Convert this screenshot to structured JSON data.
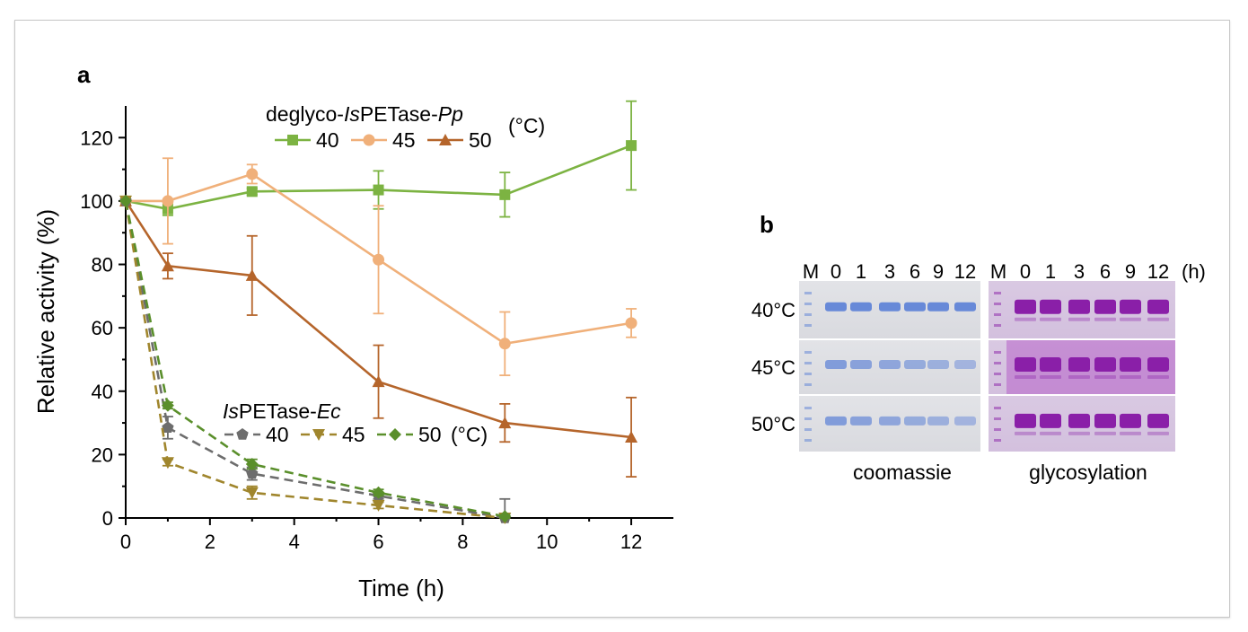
{
  "panel_a": {
    "label": "a",
    "legend_pp": {
      "prefix": "deglyco-",
      "italic1": "Is",
      "middle": "PETase-",
      "italic2": "Pp",
      "unit": "(°C)"
    },
    "legend_ec": {
      "italic1": "Is",
      "middle": "PETase-",
      "italic2": "Ec",
      "unit": "(°C)"
    }
  },
  "chart_data": {
    "type": "line",
    "xlabel": "Time (h)",
    "ylabel": "Relative activity (%)",
    "xlim": [
      0,
      13
    ],
    "ylim": [
      0,
      130
    ],
    "xticks": [
      0,
      2,
      4,
      6,
      8,
      10,
      12
    ],
    "yticks": [
      0,
      20,
      40,
      60,
      80,
      100,
      120
    ],
    "series": [
      {
        "name": "40",
        "group": "pp",
        "color": "#7cb342",
        "marker": "square",
        "dash": false,
        "x": [
          0,
          1,
          3,
          6,
          9,
          12
        ],
        "y": [
          100,
          97.5,
          103,
          103.5,
          102,
          117.5
        ],
        "err": [
          0,
          2,
          1,
          6,
          7,
          14
        ]
      },
      {
        "name": "45",
        "group": "pp",
        "color": "#f0b07a",
        "marker": "circle",
        "dash": false,
        "x": [
          0,
          1,
          3,
          6,
          9,
          12
        ],
        "y": [
          100,
          100,
          108.5,
          81.5,
          55,
          61.5
        ],
        "err": [
          0,
          13.5,
          3,
          17,
          10,
          4.5
        ]
      },
      {
        "name": "50",
        "group": "pp",
        "color": "#b5652b",
        "marker": "triangle",
        "dash": false,
        "x": [
          0,
          1,
          3,
          6,
          9,
          12
        ],
        "y": [
          100,
          79.5,
          76.5,
          43,
          30,
          25.5
        ],
        "err": [
          0,
          4,
          12.5,
          11.5,
          6,
          12.5
        ]
      },
      {
        "name": "40",
        "group": "ec",
        "color": "#6d6d6d",
        "marker": "pentagon",
        "dash": true,
        "x": [
          0,
          1,
          3,
          6,
          9
        ],
        "y": [
          100,
          28.5,
          14,
          7,
          0
        ],
        "err": [
          0,
          3.5,
          2,
          1,
          6
        ]
      },
      {
        "name": "45",
        "group": "ec",
        "color": "#a0862d",
        "marker": "triangle-down",
        "dash": true,
        "x": [
          0,
          1,
          3,
          6,
          9
        ],
        "y": [
          100,
          17.5,
          8,
          4,
          0
        ],
        "err": [
          0,
          1,
          2,
          1,
          0.5
        ]
      },
      {
        "name": "50",
        "group": "ec",
        "color": "#5a8f2b",
        "marker": "diamond",
        "dash": true,
        "x": [
          0,
          1,
          3,
          6,
          9
        ],
        "y": [
          100,
          35.5,
          17,
          8,
          0.5
        ],
        "err": [
          0,
          1,
          1.5,
          1,
          0.5
        ]
      }
    ]
  },
  "panel_b": {
    "label": "b",
    "marker_lane": "M",
    "times": [
      "0",
      "1",
      "3",
      "6",
      "9",
      "12"
    ],
    "time_unit": "(h)",
    "temps": [
      "40°C",
      "45°C",
      "50°C"
    ],
    "stain_labels": [
      "coomassie",
      "glycosylation"
    ],
    "coomassie_color": "#5a7fd6",
    "glyco_color": "#8a1fa8"
  }
}
